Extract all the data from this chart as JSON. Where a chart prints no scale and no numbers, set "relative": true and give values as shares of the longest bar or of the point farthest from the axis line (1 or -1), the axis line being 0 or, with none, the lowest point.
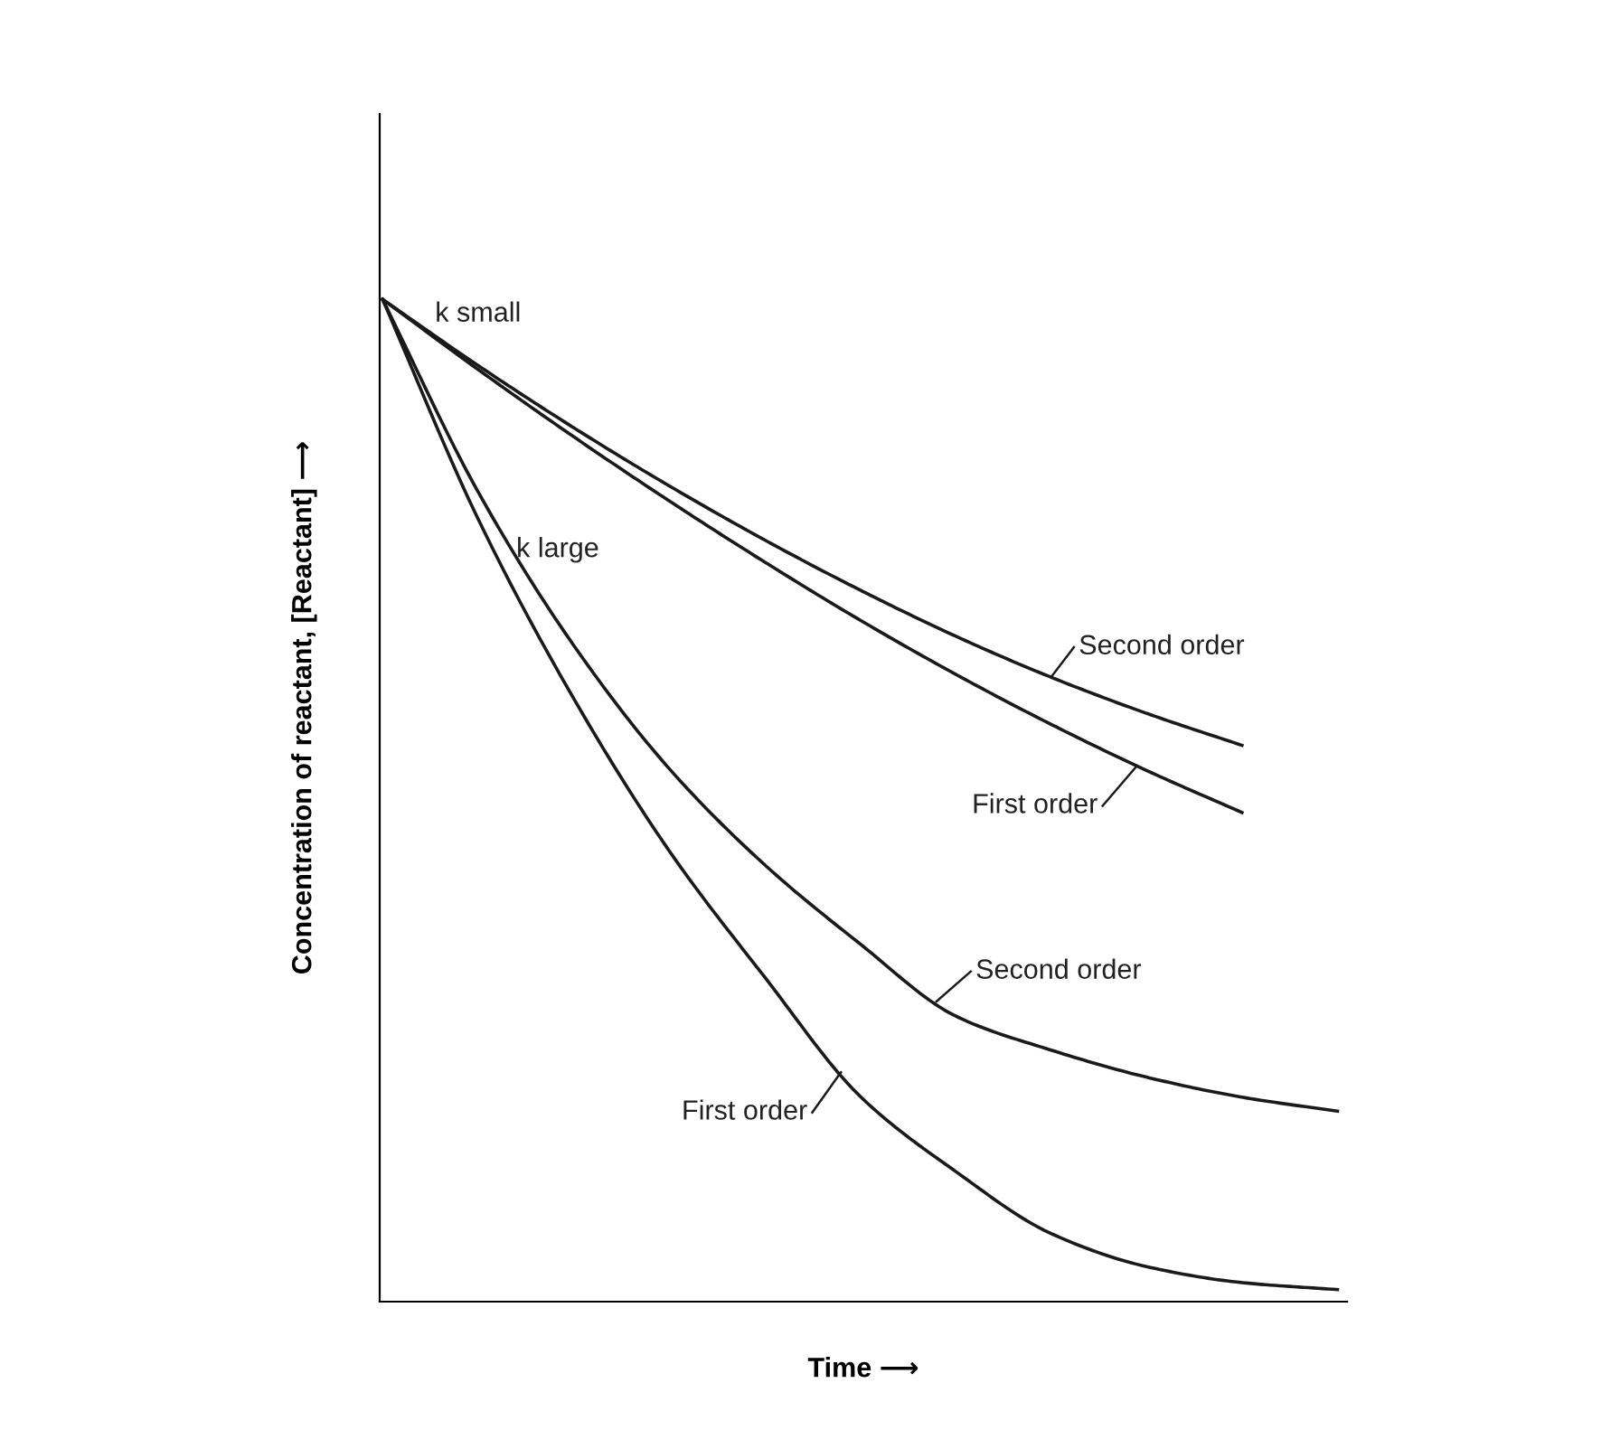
{
  "chart_data": {
    "type": "line",
    "relative": true,
    "xlabel": "Time ⟶",
    "ylabel": "Concentration of reactant, [Reactant] ⟶",
    "categories": [
      null,
      null,
      null,
      null,
      null,
      null,
      null,
      null,
      null,
      null,
      null
    ],
    "series": [
      {
        "name": "Second order",
        "color": "#1a1a1a",
        "values": [
          1,
          0.934,
          0.872,
          0.814,
          0.76,
          0.71,
          0.664,
          0.623,
          0.587,
          0.555,
          null
        ]
      },
      {
        "name": "First order",
        "color": "#1a1a1a",
        "values": [
          1,
          0.93,
          0.863,
          0.799,
          0.738,
          0.68,
          0.626,
          0.576,
          0.53,
          0.488,
          null
        ]
      },
      {
        "name": "Second order",
        "color": "#1a1a1a",
        "values": [
          1,
          0.808,
          0.655,
          0.532,
          0.436,
          0.357,
          0.285,
          0.251,
          0.224,
          0.204,
          0.19
        ]
      },
      {
        "name": "First order",
        "color": "#1a1a1a",
        "values": [
          1,
          0.781,
          0.602,
          0.45,
          0.324,
          0.205,
          0.13,
          0.068,
          0.035,
          0.019,
          0.012
        ]
      }
    ],
    "annotations": [
      "k small",
      "k large"
    ],
    "marker": "none",
    "line_style": "solid"
  }
}
